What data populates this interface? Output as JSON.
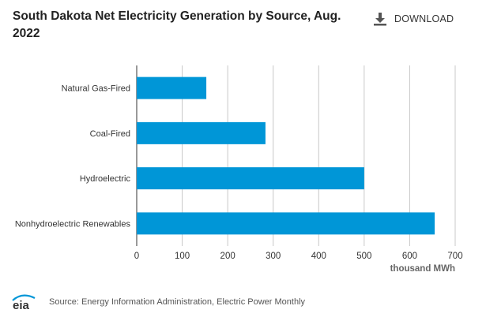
{
  "header": {
    "title": "South Dakota Net Electricity Generation by Source, Aug. 2022",
    "download_label": "DOWNLOAD",
    "download_icon": "download-icon"
  },
  "footer": {
    "logo_text": "eia",
    "source": "Source: Energy Information Administration, Electric Power Monthly"
  },
  "colors": {
    "bar": "#0096d7",
    "grid": "#c8c8c8",
    "axis": "#333333"
  },
  "chart_data": {
    "type": "bar",
    "orientation": "horizontal",
    "categories": [
      "Natural Gas-Fired",
      "Coal-Fired",
      "Hydroelectric",
      "Nonhydroelectric Renewables"
    ],
    "values": [
      153,
      283,
      500,
      655
    ],
    "xlabel": "thousand MWh",
    "ylabel": "",
    "xlim": [
      0,
      700
    ],
    "xticks": [
      0,
      100,
      200,
      300,
      400,
      500,
      600,
      700
    ],
    "grid": "vertical",
    "legend": "none"
  }
}
